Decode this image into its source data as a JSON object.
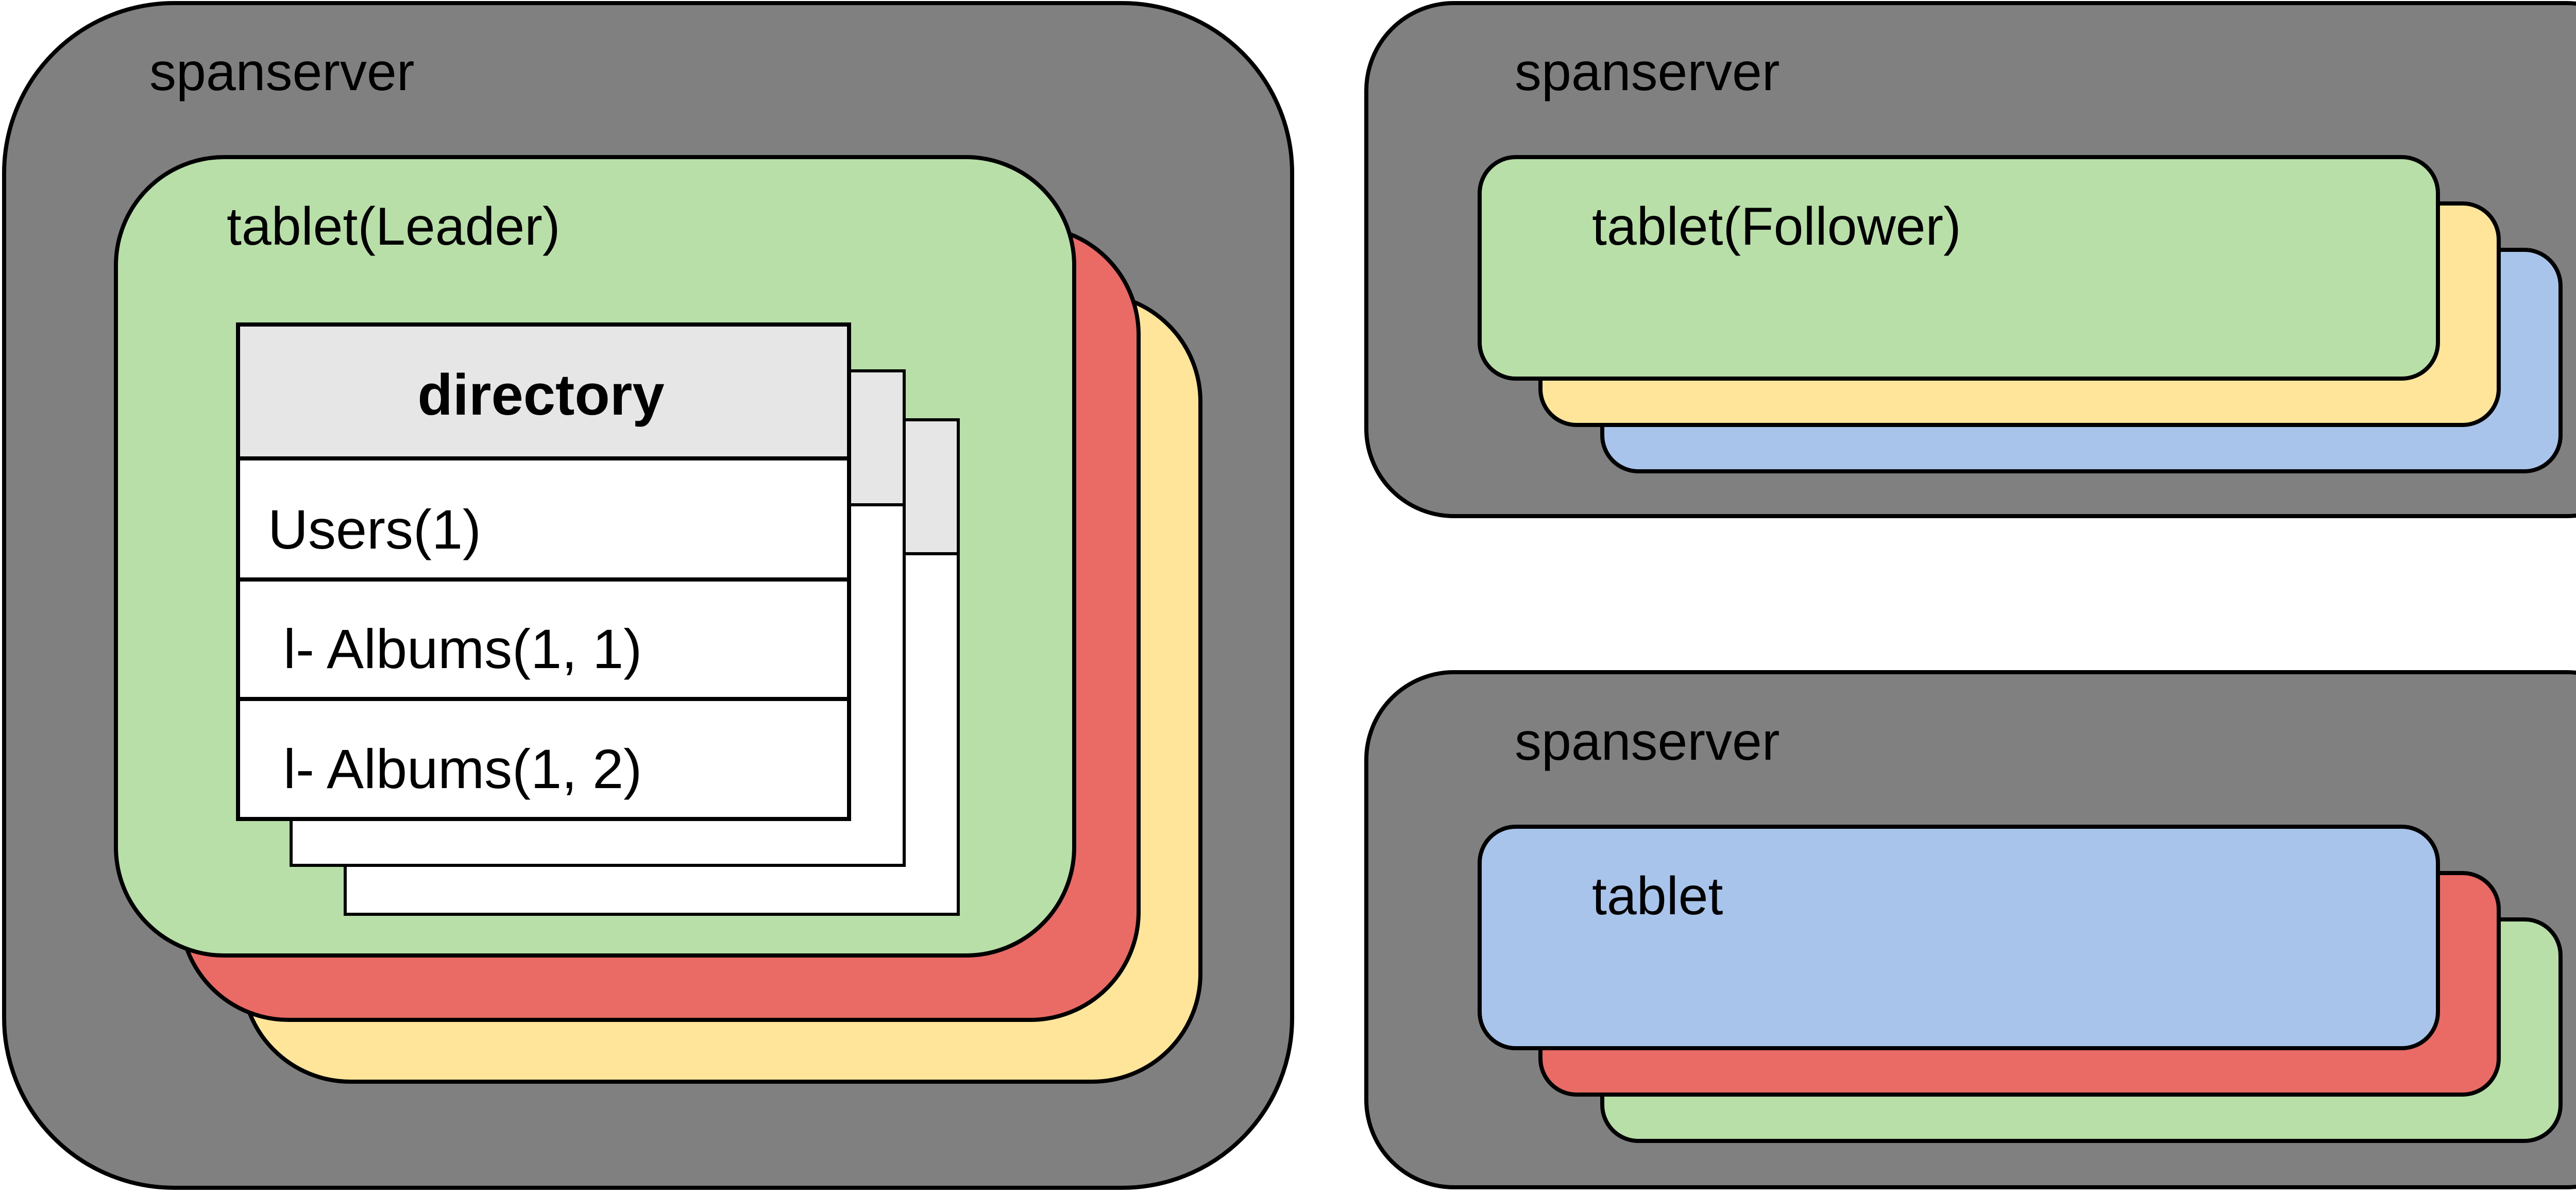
{
  "colors": {
    "server": "#808080",
    "green": "#b9dfa8",
    "red": "#ea6b66",
    "yellow": "#fee59a",
    "blue": "#a9c4ea",
    "header": "#e6e6e6",
    "white": "#ffffff",
    "stroke": "#000000"
  },
  "servers": [
    {
      "label": "spanserver"
    },
    {
      "label": "spanserver"
    },
    {
      "label": "spanserver"
    }
  ],
  "tablets": {
    "leader": "tablet(Leader)",
    "follower": "tablet(Follower)",
    "plain": "tablet"
  },
  "directory": {
    "header": "directory",
    "rows": [
      "Users(1)",
      "l- Albums(1, 1)",
      "l- Albums(1, 2)"
    ]
  }
}
